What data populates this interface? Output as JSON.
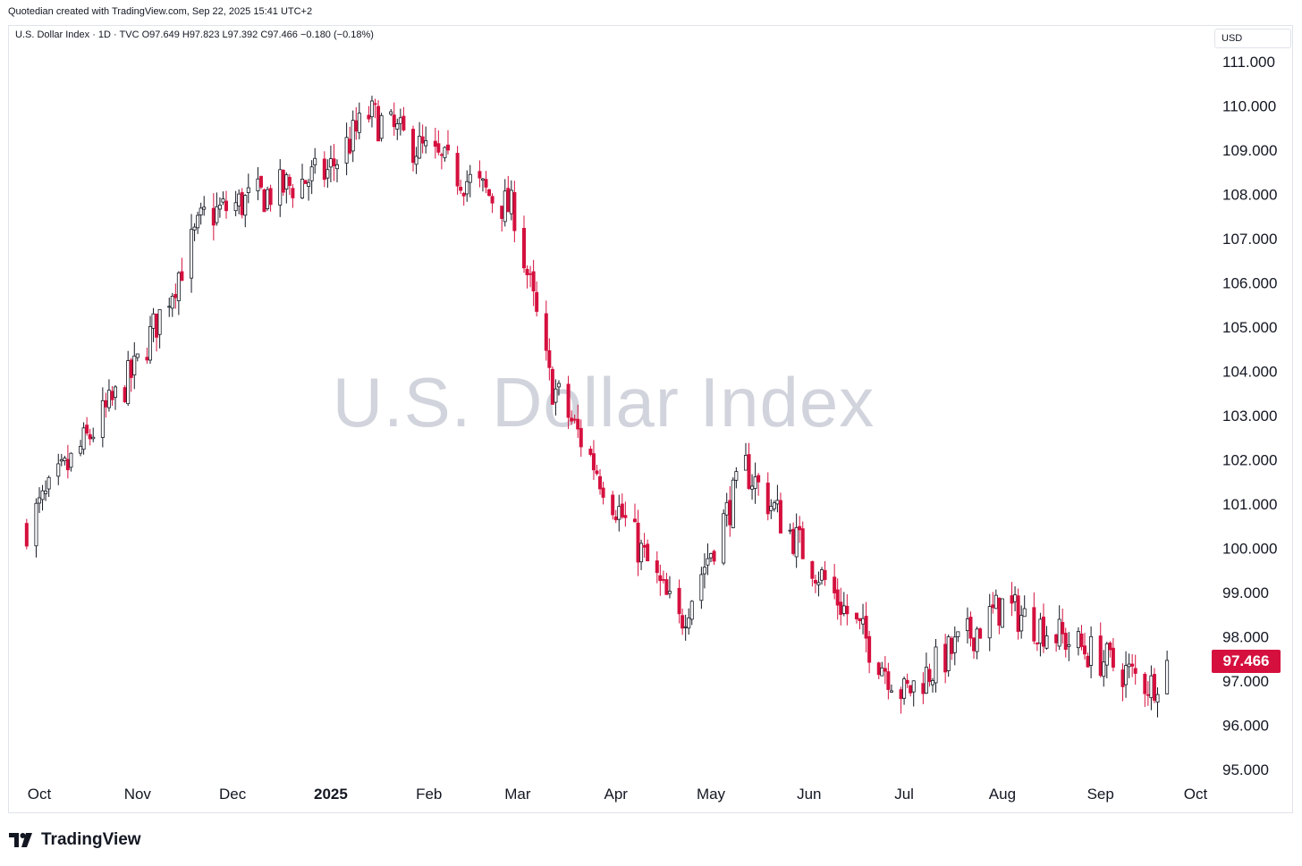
{
  "credit": "Quotedian created with TradingView.com, Sep 22, 2025 15:41 UTC+2",
  "legend": "U.S. Dollar Index · 1D · TVC  O97.649  H97.823  L97.392  C97.466  −0.180 (−0.18%)",
  "currency": "USD",
  "watermark": "U.S. Dollar Index",
  "brand": "TradingView",
  "colors": {
    "up": "#131722",
    "down": "#d5103e",
    "last_price_tag": "#d5103e"
  },
  "chart_data": {
    "type": "candlestick",
    "title": "U.S. Dollar Index",
    "symbol": "U.S. Dollar Index · 1D · TVC",
    "ylim": [
      94.6,
      111.8
    ],
    "y_ticks": [
      "111.000",
      "110.000",
      "109.000",
      "108.000",
      "107.000",
      "106.000",
      "105.000",
      "104.000",
      "103.000",
      "102.000",
      "101.000",
      "100.000",
      "99.000",
      "98.000",
      "97.000",
      "96.000",
      "95.000"
    ],
    "x_ticks": [
      {
        "label": "Oct",
        "date": "2024-10-01",
        "bold": false
      },
      {
        "label": "Nov",
        "date": "2024-11-01",
        "bold": false
      },
      {
        "label": "Dec",
        "date": "2024-12-01",
        "bold": false
      },
      {
        "label": "2025",
        "date": "2025-01-01",
        "bold": true
      },
      {
        "label": "Feb",
        "date": "2025-02-01",
        "bold": false
      },
      {
        "label": "Mar",
        "date": "2025-03-01",
        "bold": false
      },
      {
        "label": "Apr",
        "date": "2025-04-01",
        "bold": false
      },
      {
        "label": "May",
        "date": "2025-05-01",
        "bold": false
      },
      {
        "label": "Jun",
        "date": "2025-06-01",
        "bold": false
      },
      {
        "label": "Jul",
        "date": "2025-07-01",
        "bold": false
      },
      {
        "label": "Aug",
        "date": "2025-08-01",
        "bold": false
      },
      {
        "label": "Sep",
        "date": "2025-09-01",
        "bold": false
      },
      {
        "label": "Oct",
        "date": "2025-10-01",
        "bold": false
      }
    ],
    "last_price": "97.466",
    "key_points": [
      {
        "date": "2024-09-27",
        "close": 100.5
      },
      {
        "date": "2024-10-31",
        "close": 104.0
      },
      {
        "date": "2024-11-22",
        "close": 107.5
      },
      {
        "date": "2024-12-31",
        "close": 108.5
      },
      {
        "date": "2025-01-13",
        "close": 109.8
      },
      {
        "date": "2025-02-28",
        "close": 107.6
      },
      {
        "date": "2025-03-11",
        "close": 103.8
      },
      {
        "date": "2025-04-21",
        "close": 98.3
      },
      {
        "date": "2025-05-12",
        "close": 101.8
      },
      {
        "date": "2025-07-01",
        "close": 96.7
      },
      {
        "date": "2025-08-01",
        "close": 98.7
      },
      {
        "date": "2025-09-17",
        "close": 96.9
      },
      {
        "date": "2025-09-22",
        "close": 97.466
      }
    ]
  }
}
